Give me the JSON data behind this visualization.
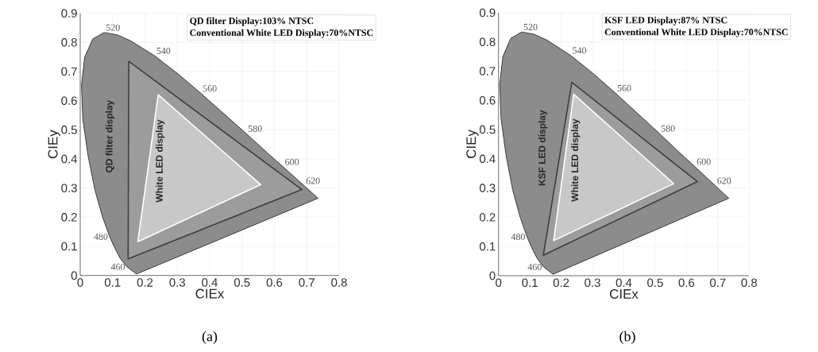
{
  "chart_data": [
    {
      "type": "area",
      "xlabel": "CIEx",
      "ylabel": "CIEy",
      "xlim": [
        0,
        0.8
      ],
      "ylim": [
        0,
        0.9
      ],
      "xticks": [
        0,
        0.1,
        0.2,
        0.3,
        0.4,
        0.5,
        0.6,
        0.7,
        0.8
      ],
      "yticks": [
        0,
        0.1,
        0.2,
        0.3,
        0.4,
        0.5,
        0.6,
        0.7,
        0.8,
        0.9
      ],
      "grid": true,
      "series": [
        {
          "color": "#8c8c8c",
          "x": [
            0.174,
            0.144,
            0.124,
            0.11,
            0.091,
            0.069,
            0.045,
            0.024,
            0.008,
            0.004,
            0.014,
            0.039,
            0.074,
            0.114,
            0.155,
            0.23,
            0.302,
            0.373,
            0.444,
            0.513,
            0.575,
            0.627,
            0.692,
            0.719,
            0.735,
            0.174
          ],
          "values": [
            0.005,
            0.03,
            0.058,
            0.087,
            0.133,
            0.201,
            0.295,
            0.413,
            0.538,
            0.655,
            0.75,
            0.812,
            0.834,
            0.826,
            0.806,
            0.754,
            0.692,
            0.625,
            0.555,
            0.487,
            0.424,
            0.373,
            0.308,
            0.281,
            0.265,
            0.005
          ]
        },
        {
          "name": "QD filter display",
          "color": "#9c9c9c",
          "x": [
            0.15,
            0.685,
            0.148
          ],
          "values": [
            0.735,
            0.295,
            0.057
          ]
        },
        {
          "name": "White LED display",
          "color": "#c8c8c8",
          "x": [
            0.241,
            0.558,
            0.178
          ],
          "values": [
            0.62,
            0.312,
            0.116
          ]
        }
      ],
      "annotations": [
        "QD filter Display:103% NTSC",
        "Conventional White LED Display:70%NTSC",
        "(a)",
        {
          "text": "520",
          "x": 0.074,
          "y": 0.834
        },
        {
          "text": "540",
          "x": 0.23,
          "y": 0.754
        },
        {
          "text": "560",
          "x": 0.373,
          "y": 0.625
        },
        {
          "text": "580",
          "x": 0.513,
          "y": 0.487
        },
        {
          "text": "600",
          "x": 0.627,
          "y": 0.373
        },
        {
          "text": "620",
          "x": 0.692,
          "y": 0.308
        },
        {
          "text": "480",
          "x": 0.091,
          "y": 0.133
        },
        {
          "text": "460",
          "x": 0.144,
          "y": 0.03
        }
      ]
    },
    {
      "type": "area",
      "xlabel": "CIEx",
      "ylabel": "CIEy",
      "xlim": [
        0,
        0.8
      ],
      "ylim": [
        0,
        0.9
      ],
      "xticks": [
        0,
        0.1,
        0.2,
        0.3,
        0.4,
        0.5,
        0.6,
        0.7,
        0.8
      ],
      "yticks": [
        0,
        0.1,
        0.2,
        0.3,
        0.4,
        0.5,
        0.6,
        0.7,
        0.8,
        0.9
      ],
      "grid": true,
      "series": [
        {
          "color": "#8c8c8c",
          "x": [
            0.174,
            0.144,
            0.124,
            0.11,
            0.091,
            0.069,
            0.045,
            0.024,
            0.008,
            0.004,
            0.014,
            0.039,
            0.074,
            0.114,
            0.155,
            0.23,
            0.302,
            0.373,
            0.444,
            0.513,
            0.575,
            0.627,
            0.692,
            0.719,
            0.735,
            0.174
          ],
          "values": [
            0.005,
            0.03,
            0.058,
            0.087,
            0.133,
            0.201,
            0.295,
            0.413,
            0.538,
            0.655,
            0.75,
            0.812,
            0.834,
            0.826,
            0.806,
            0.754,
            0.692,
            0.625,
            0.555,
            0.487,
            0.424,
            0.373,
            0.308,
            0.281,
            0.265,
            0.005
          ]
        },
        {
          "name": "KSF LED display",
          "color": "#9c9c9c",
          "x": [
            0.234,
            0.635,
            0.143
          ],
          "values": [
            0.662,
            0.322,
            0.07
          ]
        },
        {
          "name": "White LED display",
          "color": "#c8c8c8",
          "x": [
            0.24,
            0.559,
            0.176
          ],
          "values": [
            0.621,
            0.315,
            0.12
          ]
        }
      ],
      "annotations": [
        "KSF LED Display:87% NTSC",
        "Conventional White LED Display:70%NTSC",
        "(b)",
        {
          "text": "520",
          "x": 0.074,
          "y": 0.834
        },
        {
          "text": "540",
          "x": 0.23,
          "y": 0.754
        },
        {
          "text": "560",
          "x": 0.373,
          "y": 0.625
        },
        {
          "text": "580",
          "x": 0.513,
          "y": 0.487
        },
        {
          "text": "600",
          "x": 0.627,
          "y": 0.373
        },
        {
          "text": "620",
          "x": 0.692,
          "y": 0.308
        },
        {
          "text": "480",
          "x": 0.091,
          "y": 0.133
        },
        {
          "text": "460",
          "x": 0.144,
          "y": 0.03
        }
      ]
    }
  ]
}
